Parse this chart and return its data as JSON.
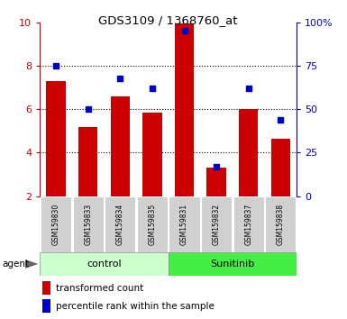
{
  "title": "GDS3109 / 1368760_at",
  "samples": [
    "GSM159830",
    "GSM159833",
    "GSM159834",
    "GSM159835",
    "GSM159831",
    "GSM159832",
    "GSM159837",
    "GSM159838"
  ],
  "bar_values": [
    7.3,
    5.2,
    6.6,
    5.85,
    9.95,
    3.3,
    6.0,
    4.65
  ],
  "dot_values": [
    75,
    50,
    68,
    62,
    95,
    17,
    62,
    44
  ],
  "bar_color": "#cc0000",
  "dot_color": "#0000cc",
  "ymin": 2,
  "ymax": 10,
  "y2min": 0,
  "y2max": 100,
  "yticks": [
    2,
    4,
    6,
    8,
    10
  ],
  "y2ticks": [
    0,
    25,
    50,
    75,
    100
  ],
  "y2ticklabels": [
    "0",
    "25",
    "50",
    "75",
    "100%"
  ],
  "groups": [
    {
      "label": "control",
      "start": 0,
      "end": 4,
      "color": "#ccffcc"
    },
    {
      "label": "Sunitinib",
      "start": 4,
      "end": 8,
      "color": "#44ee44"
    }
  ],
  "agent_label": "agent",
  "legend_bar_label": "transformed count",
  "legend_dot_label": "percentile rank within the sample",
  "tick_label_color_left": "#cc0000",
  "tick_label_color_right": "#0000cc",
  "grid_yticks": [
    4,
    6,
    8
  ]
}
